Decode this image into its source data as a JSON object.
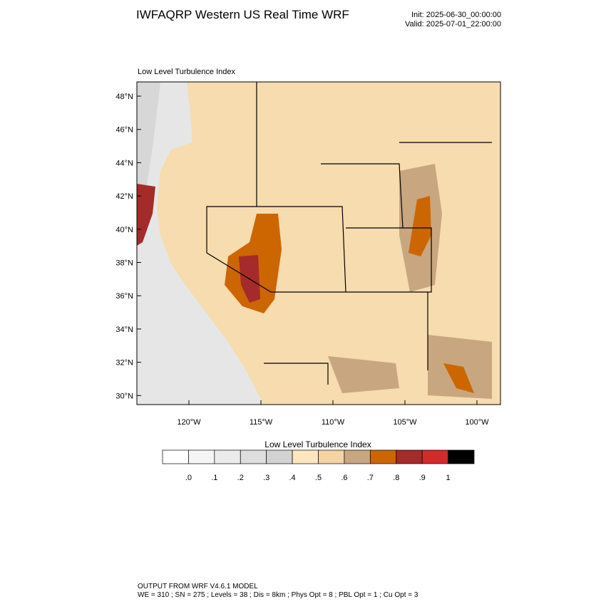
{
  "header": {
    "title": "IWFAQRP Western US Real Time WRF",
    "init": "Init: 2025-06-30_00:00:00",
    "valid": "Valid: 2025-07-01_22:00:00"
  },
  "map": {
    "label": "Low Level Turbulence Index",
    "lat_labels": [
      "48°N",
      "46°N",
      "44°N",
      "42°N",
      "40°N",
      "38°N",
      "36°N",
      "34°N",
      "32°N",
      "30°N"
    ],
    "lon_labels": [
      "120°W",
      "115°W",
      "110°W",
      "105°W",
      "100°W"
    ]
  },
  "colorbar": {
    "title": "Low Level Turbulence Index",
    "colors": [
      "#ffffff",
      "#f5f5f5",
      "#ebebeb",
      "#dedede",
      "#d2d2d2",
      "#fde6bd",
      "#f3d4a2",
      "#c8a680",
      "#cc6600",
      "#a52a2a",
      "#d42a2a",
      "#000000"
    ],
    "labels": [
      ".0",
      ".1",
      ".2",
      ".3",
      ".4",
      ".5",
      ".6",
      ".7",
      ".8",
      ".9",
      "1"
    ]
  },
  "footer": {
    "line1": "OUTPUT FROM WRF V4.6.1 MODEL",
    "line2": "WE = 310 ; SN = 275 ; Levels = 38 ; Dis = 8km ; Phys Opt = 8 ; PBL Opt = 1 ; Cu Opt = 3"
  }
}
